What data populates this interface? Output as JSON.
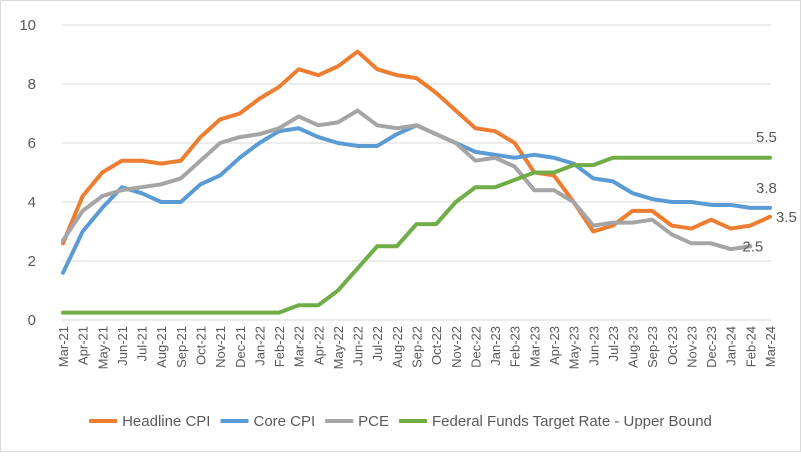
{
  "chart_data": {
    "type": "line",
    "categories": [
      "Mar-21",
      "Apr-21",
      "May-21",
      "Jun-21",
      "Jul-21",
      "Aug-21",
      "Sep-21",
      "Oct-21",
      "Nov-21",
      "Dec-21",
      "Jan-22",
      "Feb-22",
      "Mar-22",
      "Apr-22",
      "May-22",
      "Jun-22",
      "Jul-22",
      "Aug-22",
      "Sep-22",
      "Oct-22",
      "Nov-22",
      "Dec-22",
      "Jan-23",
      "Feb-23",
      "Mar-23",
      "Apr-23",
      "May-23",
      "Jun-23",
      "Jul-23",
      "Aug-23",
      "Sep-23",
      "Oct-23",
      "Nov-23",
      "Dec-23",
      "Jan-24",
      "Feb-24",
      "Mar-24"
    ],
    "ylim": [
      0,
      10
    ],
    "yticks": [
      "0",
      "2",
      "4",
      "6",
      "8",
      "10"
    ],
    "grid": true,
    "legend_position": "bottom",
    "series": [
      {
        "name": "Headline CPI",
        "color": "#ED7D31",
        "values": [
          2.6,
          4.2,
          5.0,
          5.4,
          5.4,
          5.3,
          5.4,
          6.2,
          6.8,
          7.0,
          7.5,
          7.9,
          8.5,
          8.3,
          8.6,
          9.1,
          8.5,
          8.3,
          8.2,
          7.7,
          7.1,
          6.5,
          6.4,
          6.0,
          5.0,
          4.9,
          4.0,
          3.0,
          3.2,
          3.7,
          3.7,
          3.2,
          3.1,
          3.4,
          3.1,
          3.2,
          3.5
        ],
        "end_label": "3.5"
      },
      {
        "name": "Core CPI",
        "color": "#5B9BD5",
        "values": [
          1.6,
          3.0,
          3.8,
          4.5,
          4.3,
          4.0,
          4.0,
          4.6,
          4.9,
          5.5,
          6.0,
          6.4,
          6.5,
          6.2,
          6.0,
          5.9,
          5.9,
          6.3,
          6.6,
          6.3,
          6.0,
          5.7,
          5.6,
          5.5,
          5.6,
          5.5,
          5.3,
          4.8,
          4.7,
          4.3,
          4.1,
          4.0,
          4.0,
          3.9,
          3.9,
          3.8,
          3.8
        ],
        "end_label": "3.8"
      },
      {
        "name": "PCE",
        "color": "#A5A5A5",
        "values": [
          2.7,
          3.7,
          4.2,
          4.4,
          4.5,
          4.6,
          4.8,
          5.4,
          6.0,
          6.2,
          6.3,
          6.5,
          6.9,
          6.6,
          6.7,
          7.1,
          6.6,
          6.5,
          6.6,
          6.3,
          6.0,
          5.4,
          5.5,
          5.2,
          4.4,
          4.4,
          4.0,
          3.2,
          3.3,
          3.3,
          3.4,
          2.9,
          2.6,
          2.6,
          2.4,
          2.5,
          null
        ],
        "end_label": "2.5"
      },
      {
        "name": "Federal Funds Target Rate - Upper Bound",
        "color": "#70AD47",
        "values": [
          0.25,
          0.25,
          0.25,
          0.25,
          0.25,
          0.25,
          0.25,
          0.25,
          0.25,
          0.25,
          0.25,
          0.25,
          0.5,
          0.5,
          1.0,
          1.75,
          2.5,
          2.5,
          3.25,
          3.25,
          4.0,
          4.5,
          4.5,
          4.75,
          5.0,
          5.0,
          5.25,
          5.25,
          5.5,
          5.5,
          5.5,
          5.5,
          5.5,
          5.5,
          5.5,
          5.5,
          5.5
        ],
        "end_label": "5.5"
      }
    ]
  }
}
